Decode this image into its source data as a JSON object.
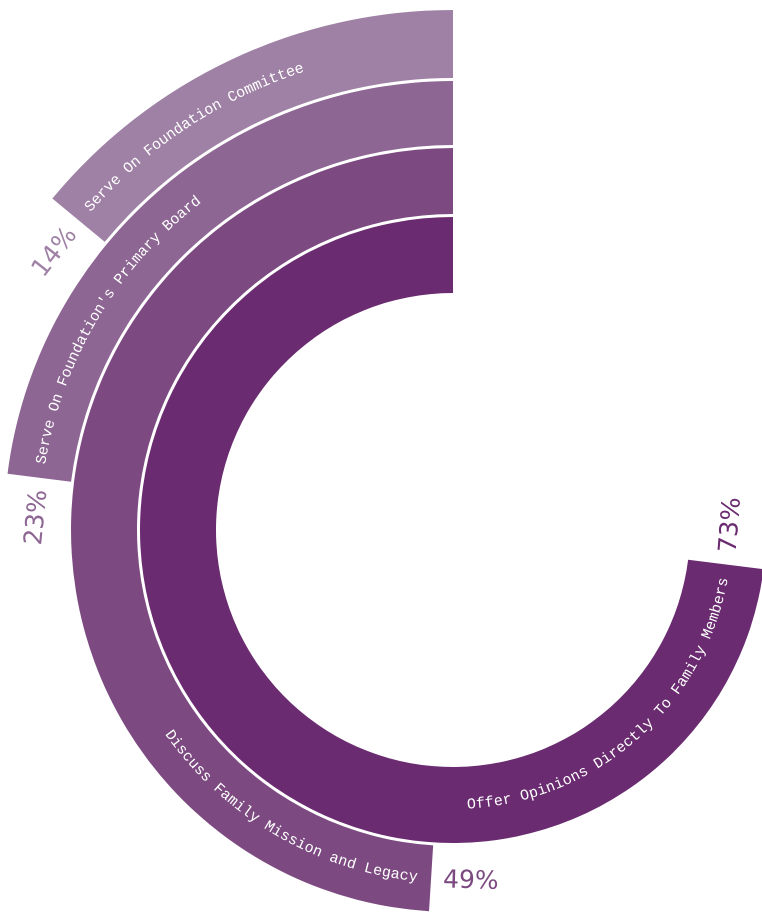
{
  "chart_data": {
    "type": "radial_bar",
    "categories": [
      "Offer Opinions Directly To Family Members",
      "Discuss Family Mission and Legacy",
      "Serve On Foundation's Primary Board",
      "Serve On Foundation Committee"
    ],
    "values": [
      73,
      49,
      23,
      14
    ],
    "value_labels": [
      "73%",
      "49%",
      "23%",
      "14%"
    ],
    "colors": [
      "#6a2b70",
      "#7c4a81",
      "#8d6693",
      "#9f81a5"
    ],
    "direction": "counterclockwise"
  }
}
